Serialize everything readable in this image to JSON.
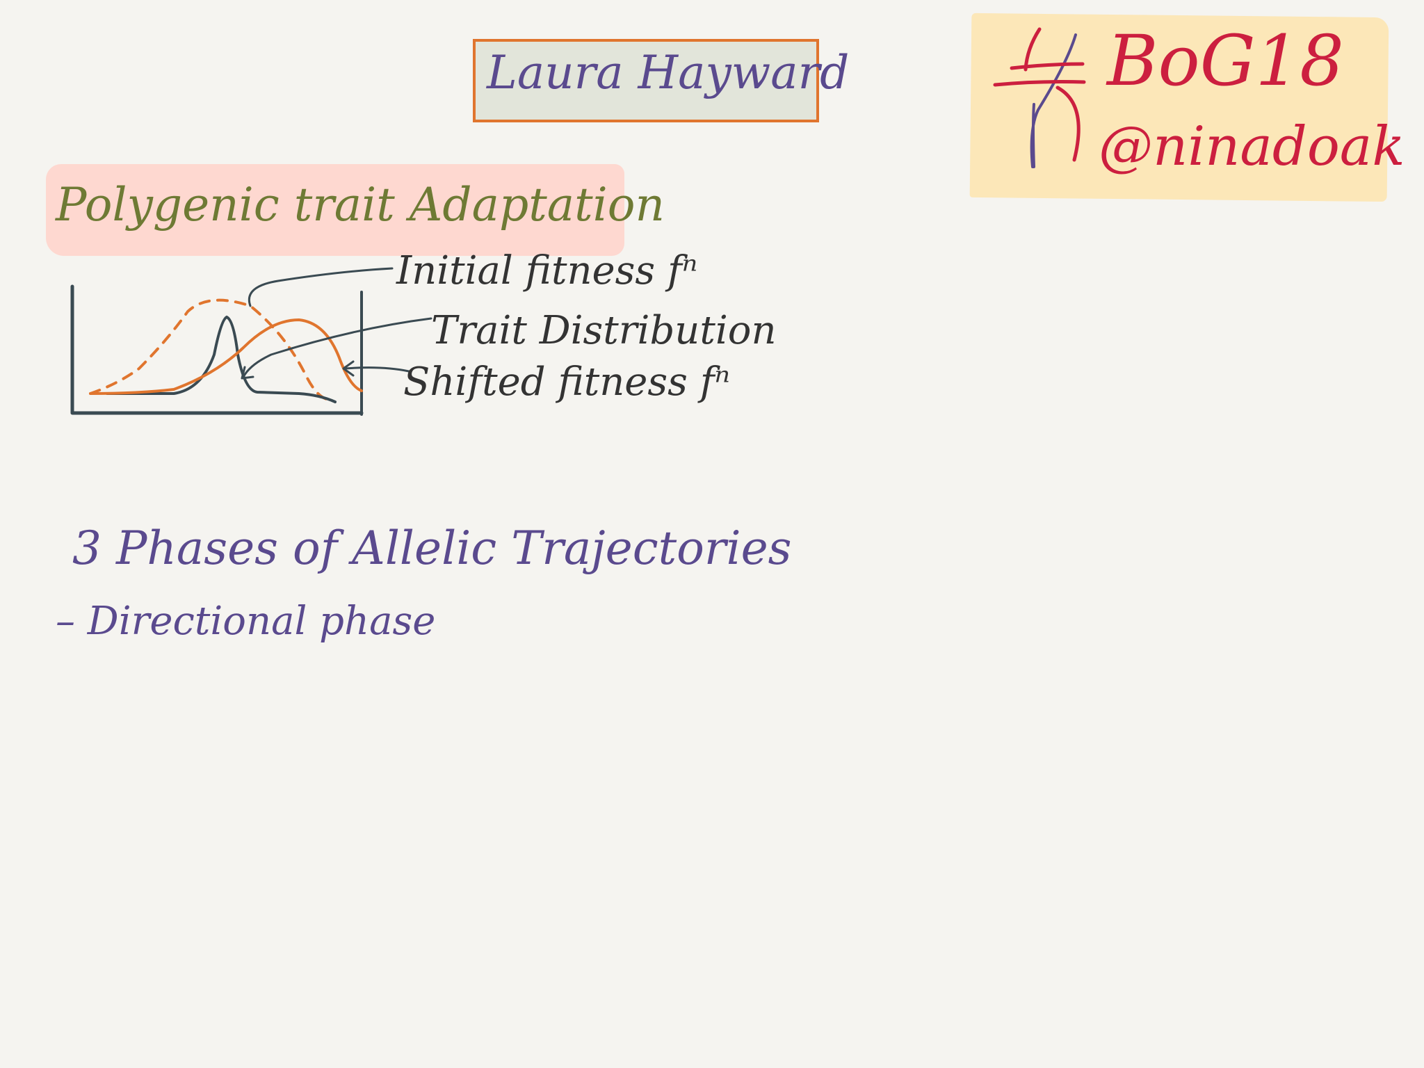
{
  "talk": {
    "speaker": "Laura Hayward",
    "hashtag": "BoG18",
    "handle": "@ninadoak"
  },
  "notes": {
    "topic": "Polygenic trait Adaptation",
    "curve_labels": {
      "initial_fitness": "Initial fitness fⁿ",
      "trait_distribution": "Trait Distribution",
      "shifted_fitness": "Shifted fitness fⁿ"
    },
    "section_title": "3 Phases of Allelic Trajectories",
    "bullets": [
      "– Directional phase"
    ]
  },
  "colors": {
    "speaker_ink": "#5a4a8e",
    "title_box_border": "#e0752e",
    "title_box_fill": "#e2e5da",
    "tag_ink": "#cc1f3f",
    "tag_note_fill": "#fce7b8",
    "topic_ink": "#6e7a34",
    "topic_highlight": "#fed8d0",
    "fitness_curve": "#e0752e",
    "trait_curve": "#3a4a52"
  },
  "icons": {
    "hashtag": "hand-drawn-hash-icon"
  }
}
